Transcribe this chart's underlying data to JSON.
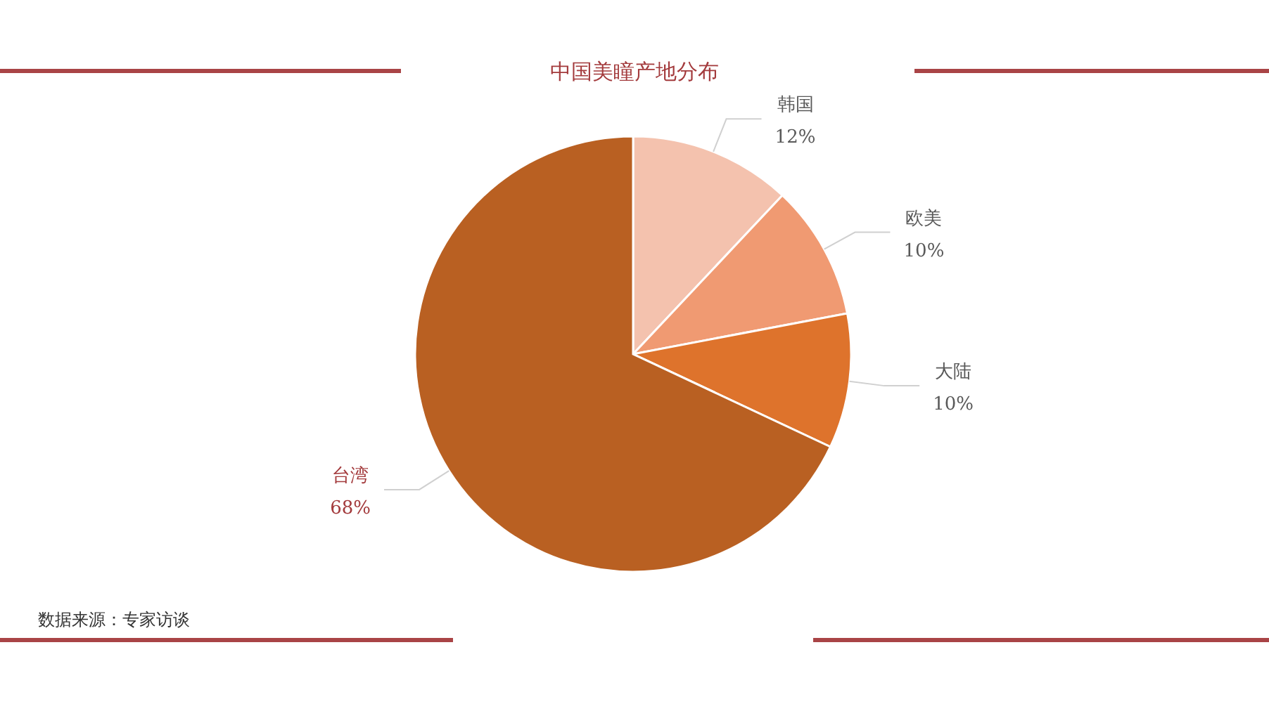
{
  "chart_data": {
    "type": "pie",
    "title": "中国美瞳产地分布",
    "categories": [
      "韩国",
      "欧美",
      "大陆",
      "台湾"
    ],
    "values": [
      12,
      10,
      10,
      68
    ],
    "colors": [
      "#f4c2ae",
      "#f09a72",
      "#de732c",
      "#b96022"
    ],
    "value_labels": [
      "12%",
      "10%",
      "10%",
      "68%"
    ],
    "annotations": [
      "数据来源：专家访谈"
    ]
  }
}
